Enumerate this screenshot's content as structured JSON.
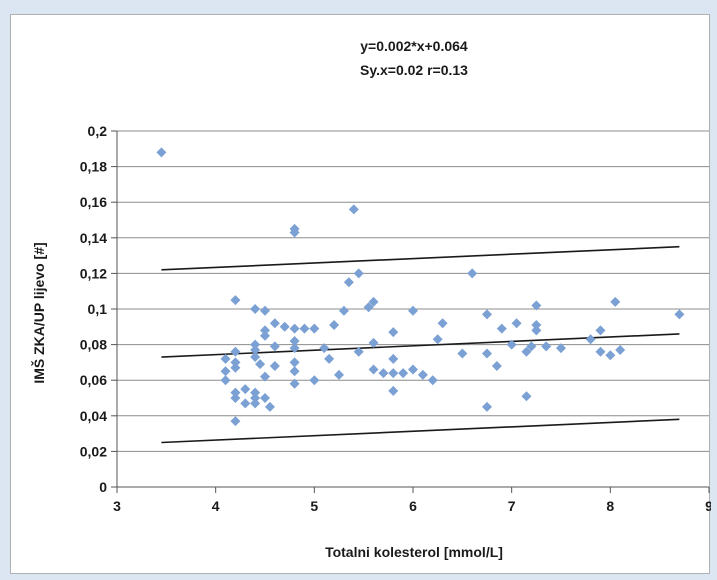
{
  "chart_data": {
    "type": "scatter",
    "annotations": [
      "y=0.002*x+0.064",
      "Sy.x=0.02  r=0.13"
    ],
    "xlabel": "Totalni kolesterol [mmol/L]",
    "ylabel": "IMŠ ZKA/UP lijevo [#]",
    "xlim": [
      3,
      9
    ],
    "ylim": [
      0,
      0.2
    ],
    "x_ticks": [
      "3",
      "4",
      "5",
      "6",
      "7",
      "8",
      "9"
    ],
    "y_ticks": [
      "0",
      "0,02",
      "0,04",
      "0,06",
      "0,08",
      "0,1",
      "0,12",
      "0,14",
      "0,16",
      "0,18",
      "0,2"
    ],
    "grid": "horizontal",
    "marker_color": "#7ba0d4",
    "line_color": "#1a1a1a",
    "lines": [
      {
        "x": [
          3.45,
          8.7
        ],
        "y": [
          0.073,
          0.086
        ]
      },
      {
        "x": [
          3.45,
          8.7
        ],
        "y": [
          0.122,
          0.135
        ]
      },
      {
        "x": [
          3.45,
          8.7
        ],
        "y": [
          0.025,
          0.038
        ]
      }
    ],
    "points": [
      {
        "x": 3.45,
        "y": 0.188
      },
      {
        "x": 4.1,
        "y": 0.072
      },
      {
        "x": 4.1,
        "y": 0.065
      },
      {
        "x": 4.1,
        "y": 0.06
      },
      {
        "x": 4.2,
        "y": 0.105
      },
      {
        "x": 4.2,
        "y": 0.076
      },
      {
        "x": 4.2,
        "y": 0.07
      },
      {
        "x": 4.2,
        "y": 0.067
      },
      {
        "x": 4.2,
        "y": 0.053
      },
      {
        "x": 4.2,
        "y": 0.05
      },
      {
        "x": 4.2,
        "y": 0.037
      },
      {
        "x": 4.3,
        "y": 0.055
      },
      {
        "x": 4.3,
        "y": 0.047
      },
      {
        "x": 4.4,
        "y": 0.1
      },
      {
        "x": 4.4,
        "y": 0.08
      },
      {
        "x": 4.4,
        "y": 0.077
      },
      {
        "x": 4.4,
        "y": 0.073
      },
      {
        "x": 4.4,
        "y": 0.053
      },
      {
        "x": 4.4,
        "y": 0.05
      },
      {
        "x": 4.4,
        "y": 0.047
      },
      {
        "x": 4.45,
        "y": 0.069
      },
      {
        "x": 4.5,
        "y": 0.099
      },
      {
        "x": 4.5,
        "y": 0.088
      },
      {
        "x": 4.5,
        "y": 0.085
      },
      {
        "x": 4.5,
        "y": 0.062
      },
      {
        "x": 4.5,
        "y": 0.05
      },
      {
        "x": 4.55,
        "y": 0.045
      },
      {
        "x": 4.6,
        "y": 0.092
      },
      {
        "x": 4.6,
        "y": 0.079
      },
      {
        "x": 4.6,
        "y": 0.068
      },
      {
        "x": 4.7,
        "y": 0.09
      },
      {
        "x": 4.8,
        "y": 0.145
      },
      {
        "x": 4.8,
        "y": 0.143
      },
      {
        "x": 4.8,
        "y": 0.089
      },
      {
        "x": 4.8,
        "y": 0.082
      },
      {
        "x": 4.8,
        "y": 0.078
      },
      {
        "x": 4.8,
        "y": 0.07
      },
      {
        "x": 4.8,
        "y": 0.065
      },
      {
        "x": 4.8,
        "y": 0.058
      },
      {
        "x": 4.9,
        "y": 0.089
      },
      {
        "x": 5.0,
        "y": 0.089
      },
      {
        "x": 5.0,
        "y": 0.06
      },
      {
        "x": 5.1,
        "y": 0.078
      },
      {
        "x": 5.15,
        "y": 0.072
      },
      {
        "x": 5.2,
        "y": 0.091
      },
      {
        "x": 5.25,
        "y": 0.063
      },
      {
        "x": 5.3,
        "y": 0.099
      },
      {
        "x": 5.35,
        "y": 0.115
      },
      {
        "x": 5.4,
        "y": 0.156
      },
      {
        "x": 5.45,
        "y": 0.076
      },
      {
        "x": 5.45,
        "y": 0.12
      },
      {
        "x": 5.55,
        "y": 0.101
      },
      {
        "x": 5.6,
        "y": 0.104
      },
      {
        "x": 5.6,
        "y": 0.081
      },
      {
        "x": 5.6,
        "y": 0.066
      },
      {
        "x": 5.7,
        "y": 0.064
      },
      {
        "x": 5.8,
        "y": 0.087
      },
      {
        "x": 5.8,
        "y": 0.072
      },
      {
        "x": 5.8,
        "y": 0.064
      },
      {
        "x": 5.8,
        "y": 0.054
      },
      {
        "x": 5.9,
        "y": 0.064
      },
      {
        "x": 6.0,
        "y": 0.099
      },
      {
        "x": 6.0,
        "y": 0.066
      },
      {
        "x": 6.1,
        "y": 0.063
      },
      {
        "x": 6.2,
        "y": 0.06
      },
      {
        "x": 6.25,
        "y": 0.083
      },
      {
        "x": 6.3,
        "y": 0.092
      },
      {
        "x": 6.5,
        "y": 0.075
      },
      {
        "x": 6.6,
        "y": 0.12
      },
      {
        "x": 6.75,
        "y": 0.097
      },
      {
        "x": 6.75,
        "y": 0.075
      },
      {
        "x": 6.75,
        "y": 0.045
      },
      {
        "x": 6.85,
        "y": 0.068
      },
      {
        "x": 6.9,
        "y": 0.089
      },
      {
        "x": 7.0,
        "y": 0.08
      },
      {
        "x": 7.05,
        "y": 0.092
      },
      {
        "x": 7.15,
        "y": 0.076
      },
      {
        "x": 7.15,
        "y": 0.051
      },
      {
        "x": 7.2,
        "y": 0.079
      },
      {
        "x": 7.25,
        "y": 0.102
      },
      {
        "x": 7.25,
        "y": 0.091
      },
      {
        "x": 7.25,
        "y": 0.088
      },
      {
        "x": 7.35,
        "y": 0.079
      },
      {
        "x": 7.5,
        "y": 0.078
      },
      {
        "x": 7.8,
        "y": 0.083
      },
      {
        "x": 7.9,
        "y": 0.088
      },
      {
        "x": 7.9,
        "y": 0.076
      },
      {
        "x": 8.0,
        "y": 0.074
      },
      {
        "x": 8.05,
        "y": 0.104
      },
      {
        "x": 8.1,
        "y": 0.077
      },
      {
        "x": 8.7,
        "y": 0.097
      }
    ]
  }
}
